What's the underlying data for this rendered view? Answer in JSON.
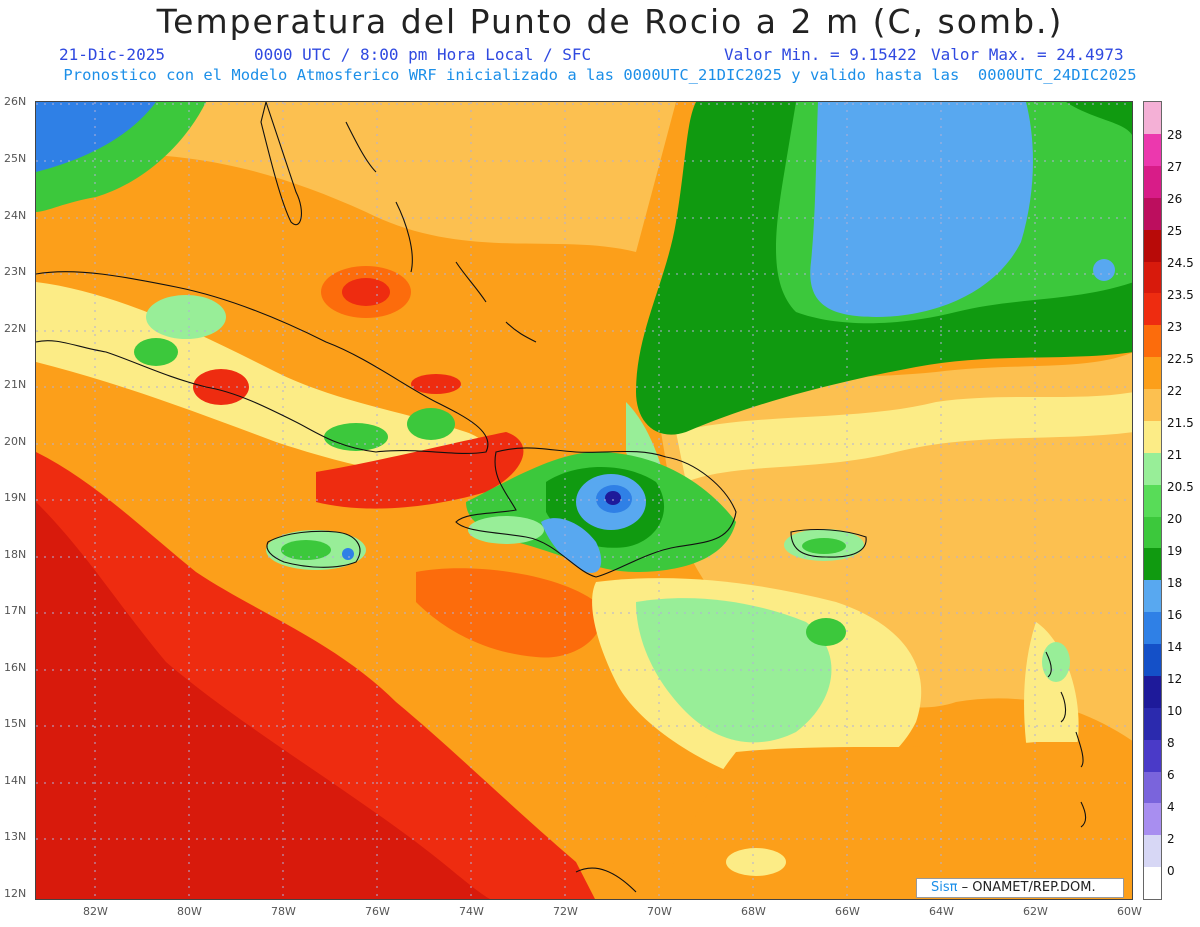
{
  "header": {
    "title": "Temperatura del Punto de Rocio a 2 m (C, somb.)",
    "date": "21-Dic-2025",
    "time": "0000 UTC / 8:00 pm Hora Local / SFC",
    "min_label": "Valor Min. = 9.15422",
    "max_label": "Valor Max. = 24.4973",
    "model_note": "Pronostico con el Modelo Atmosferico WRF inicializado a las 0000UTC_21DIC2025 y valido hasta las  0000UTC_24DIC2025"
  },
  "map": {
    "lat_labels": [
      "26N",
      "25N",
      "24N",
      "23N",
      "22N",
      "21N",
      "20N",
      "19N",
      "18N",
      "17N",
      "16N",
      "15N",
      "14N",
      "13N",
      "12N"
    ],
    "lon_labels": [
      "82W",
      "80W",
      "78W",
      "76W",
      "74W",
      "72W",
      "70W",
      "68W",
      "66W",
      "64W",
      "62W",
      "60W"
    ],
    "lat_range": [
      12,
      26
    ],
    "lon_range": [
      -83.2,
      -60
    ]
  },
  "colorbar": {
    "labels": [
      "0",
      "2",
      "4",
      "6",
      "8",
      "10",
      "12",
      "14",
      "16",
      "18",
      "19",
      "20",
      "20.5",
      "21",
      "21.5",
      "22",
      "22.5",
      "23",
      "23.5",
      "24.5",
      "25",
      "26",
      "27",
      "28"
    ],
    "colors": [
      "#ffffff",
      "#d7d7f5",
      "#a88ef0",
      "#7a64dc",
      "#4a3ac8",
      "#2b2aae",
      "#1e1a9a",
      "#1450c8",
      "#2f80e6",
      "#58a8f0",
      "#109a10",
      "#3cc83c",
      "#58dc58",
      "#98ee98",
      "#fcec86",
      "#fcc050",
      "#fc9f1a",
      "#fc6c0c",
      "#ee2c10",
      "#d81a0c",
      "#b80a08",
      "#bc0e5e",
      "#d81c88",
      "#ec38ae",
      "#f4b0d6"
    ]
  },
  "credit": {
    "logo": "Sisπ",
    "text": "– ONAMET/REP.DOM."
  }
}
